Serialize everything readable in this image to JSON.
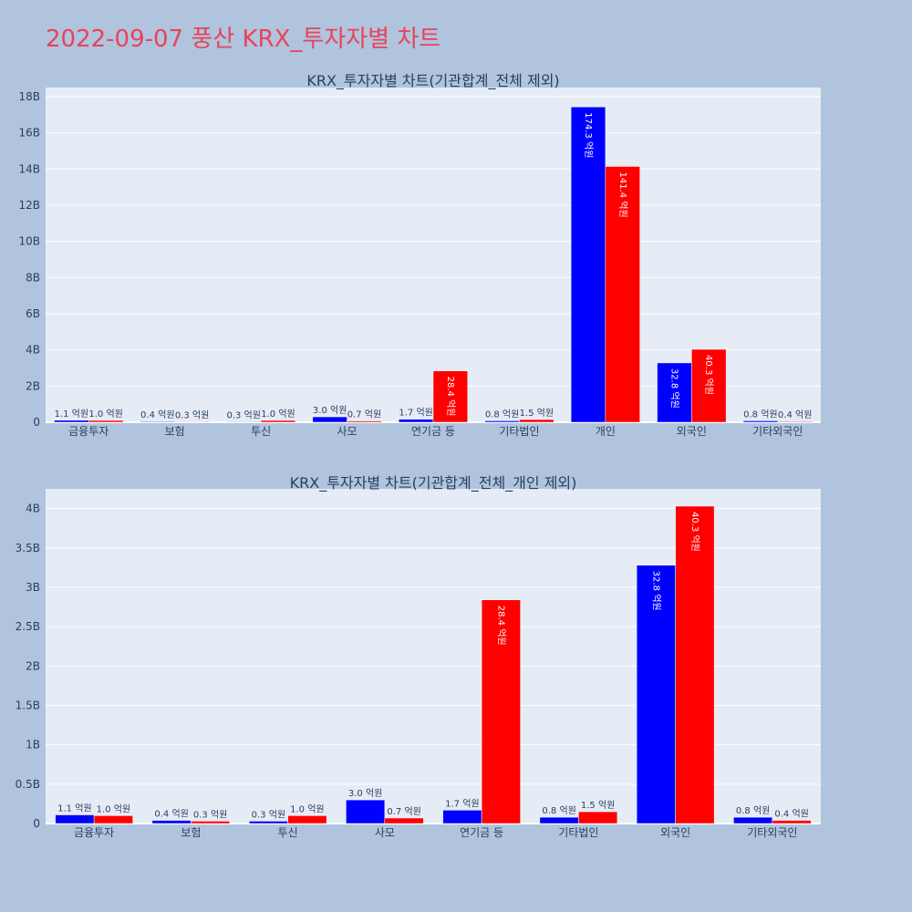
{
  "page": {
    "title": "2022-09-07 풍산 KRX_투자자별 차트",
    "title_color": "#e8435a",
    "background": "#b0c4de",
    "plot_background": "#e5ecf6"
  },
  "chart_data": [
    {
      "type": "bar",
      "title": "KRX_투자자별 차트(기관합계_전체 제외)",
      "categories": [
        "금융투자",
        "보험",
        "투신",
        "사모",
        "연기금 등",
        "기타법인",
        "개인",
        "외국인",
        "기타외국인"
      ],
      "series": [
        {
          "color": "#0000ff",
          "values": [
            110000000,
            40000000,
            30000000,
            300000000,
            170000000,
            80000000,
            17430000000,
            3280000000,
            80000000
          ],
          "labels": [
            "1.1 억원",
            "0.4 억원",
            "0.3 억원",
            "3.0 억원",
            "1.7 억원",
            "0.8 억원",
            "174.3 억원",
            "32.8 억원",
            "0.8 억원"
          ]
        },
        {
          "color": "#ff0000",
          "values": [
            100000000,
            30000000,
            100000000,
            70000000,
            2840000000,
            150000000,
            14140000000,
            4030000000,
            40000000
          ],
          "labels": [
            "1.0 억원",
            "0.3 억원",
            "1.0 억원",
            "0.7 억원",
            "28.4 억원",
            "1.5 억원",
            "141.4 억원",
            "40.3 억원",
            "0.4 억원"
          ]
        }
      ],
      "ylim": [
        0,
        18500000000
      ],
      "yticks": [
        0,
        2000000000,
        4000000000,
        6000000000,
        8000000000,
        10000000000,
        12000000000,
        14000000000,
        16000000000,
        18000000000
      ],
      "ytick_labels": [
        "0",
        "2B",
        "4B",
        "6B",
        "8B",
        "10B",
        "12B",
        "14B",
        "16B",
        "18B"
      ],
      "grid": true
    },
    {
      "type": "bar",
      "title": "KRX_투자자별 차트(기관합계_전체_개인 제외)",
      "categories": [
        "금융투자",
        "보험",
        "투신",
        "사모",
        "연기금 등",
        "기타법인",
        "외국인",
        "기타외국인"
      ],
      "series": [
        {
          "color": "#0000ff",
          "values": [
            110000000,
            40000000,
            30000000,
            300000000,
            170000000,
            80000000,
            3280000000,
            80000000
          ],
          "labels": [
            "1.1 억원",
            "0.4 억원",
            "0.3 억원",
            "3.0 억원",
            "1.7 억원",
            "0.8 억원",
            "32.8 억원",
            "0.8 억원"
          ]
        },
        {
          "color": "#ff0000",
          "values": [
            100000000,
            30000000,
            100000000,
            70000000,
            2840000000,
            150000000,
            4030000000,
            40000000
          ],
          "labels": [
            "1.0 억원",
            "0.3 억원",
            "1.0 억원",
            "0.7 억원",
            "28.4 억원",
            "1.5 억원",
            "40.3 억원",
            "0.4 억원"
          ]
        }
      ],
      "ylim": [
        0,
        4250000000
      ],
      "yticks": [
        0,
        500000000,
        1000000000,
        1500000000,
        2000000000,
        2500000000,
        3000000000,
        3500000000,
        4000000000
      ],
      "ytick_labels": [
        "0",
        "0.5B",
        "1B",
        "1.5B",
        "2B",
        "2.5B",
        "3B",
        "3.5B",
        "4B"
      ],
      "grid": true
    }
  ]
}
